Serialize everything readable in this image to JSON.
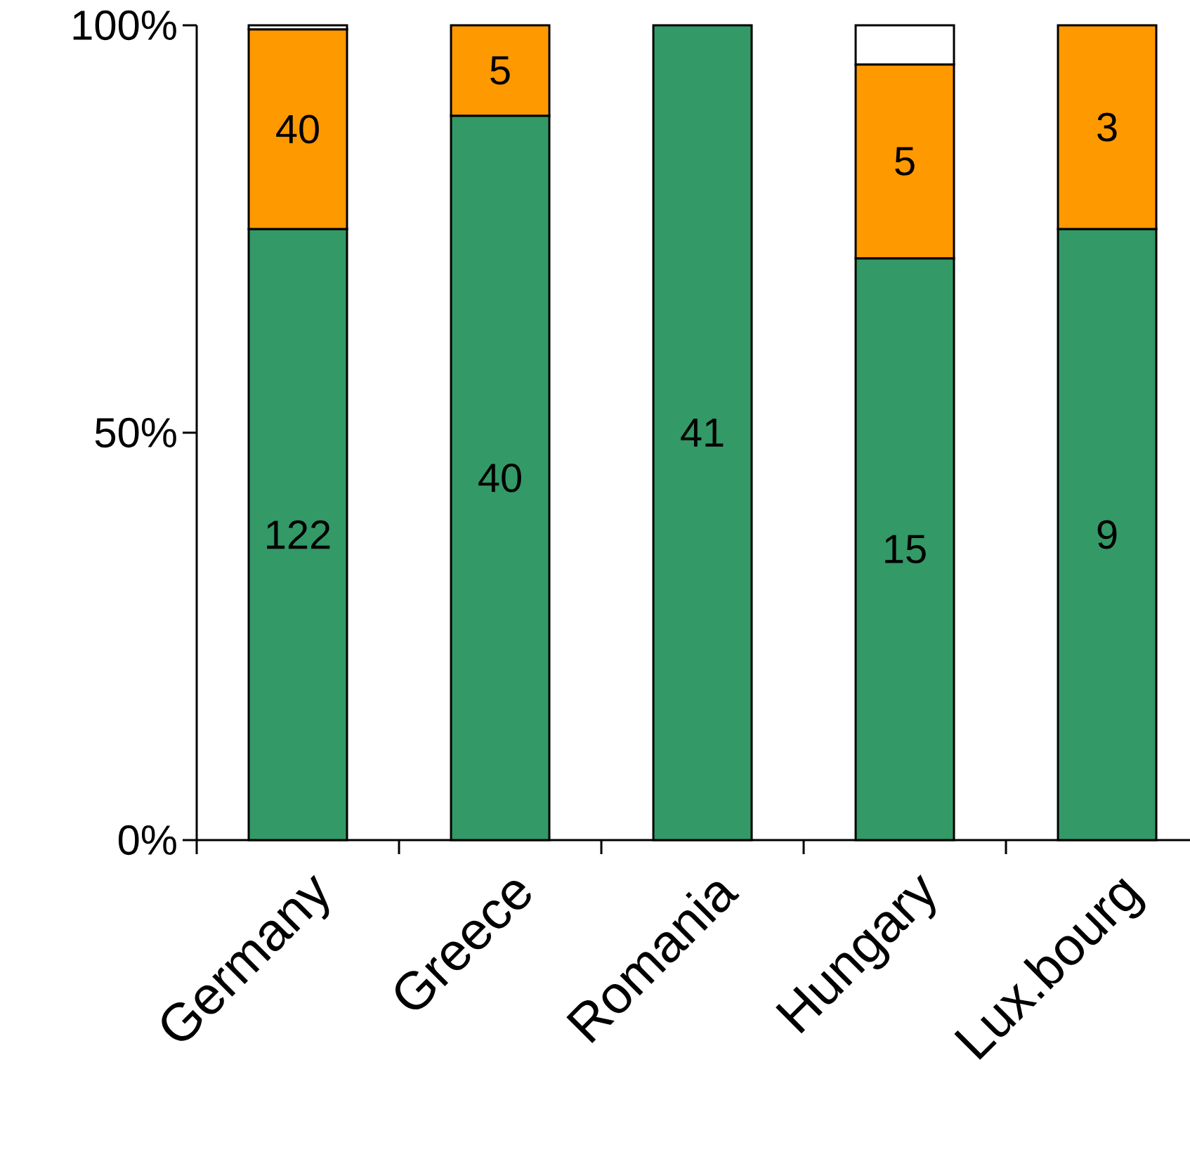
{
  "chart_data": {
    "type": "bar",
    "stacked": true,
    "categories": [
      "Germany",
      "Greece",
      "Romania",
      "Hungary",
      "Lux.bourg"
    ],
    "series": [
      {
        "color": "#339966",
        "values": [
          75,
          88.9,
          100,
          71.4,
          75
        ]
      },
      {
        "color": "#ff9900",
        "values": [
          24.5,
          11.1,
          0,
          23.8,
          25
        ]
      },
      {
        "color": "#ffffff",
        "values": [
          0.5,
          0,
          0,
          4.8,
          0
        ]
      }
    ],
    "annotations": [
      "122",
      "40",
      "41",
      "15",
      "9",
      "40",
      "5",
      "5",
      "3"
    ],
    "ylim": [
      0,
      100
    ],
    "yticks": [
      {
        "value": 0,
        "label": "0%"
      },
      {
        "value": 50,
        "label": "50%"
      },
      {
        "value": 100,
        "label": "100%"
      }
    ]
  }
}
